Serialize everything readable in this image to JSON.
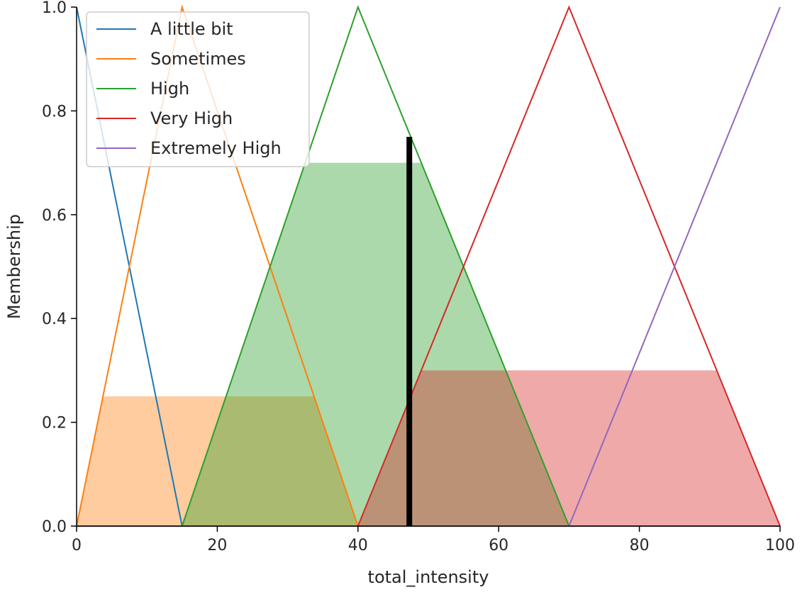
{
  "chart_data": {
    "type": "line",
    "xlabel": "total_intensity",
    "ylabel": "Membership",
    "xlim": [
      0,
      100
    ],
    "ylim": [
      0,
      1.0
    ],
    "xticks": [
      "0",
      "20",
      "40",
      "60",
      "80",
      "100"
    ],
    "yticks": [
      "0.0",
      "0.2",
      "0.4",
      "0.6",
      "0.8",
      "1.0"
    ],
    "grid": false,
    "legend_position": "top-left",
    "series": [
      {
        "name": "A little bit",
        "color": "#1f77b4",
        "x": [
          0,
          0,
          15
        ],
        "y": [
          1,
          1,
          0
        ]
      },
      {
        "name": "Sometimes",
        "color": "#ff7f0e",
        "x": [
          0,
          15,
          40
        ],
        "y": [
          0,
          1,
          0
        ]
      },
      {
        "name": "High",
        "color": "#2ca02c",
        "x": [
          15,
          40,
          70
        ],
        "y": [
          0,
          1,
          0
        ]
      },
      {
        "name": "Very High",
        "color": "#d62728",
        "x": [
          40,
          70,
          100
        ],
        "y": [
          0,
          1,
          0
        ]
      },
      {
        "name": "Extremely High",
        "color": "#9467bd",
        "x": [
          70,
          100,
          100
        ],
        "y": [
          0,
          1,
          1
        ]
      }
    ],
    "filled_regions": [
      {
        "series": "Sometimes",
        "color": "#ff7f0e",
        "level": 0.25
      },
      {
        "series": "High",
        "color": "#2ca02c",
        "level": 0.7
      },
      {
        "series": "Very High",
        "color": "#d62728",
        "level": 0.3
      }
    ],
    "result_line": {
      "x": 47.3,
      "y": 0.75,
      "color": "#000000"
    }
  }
}
